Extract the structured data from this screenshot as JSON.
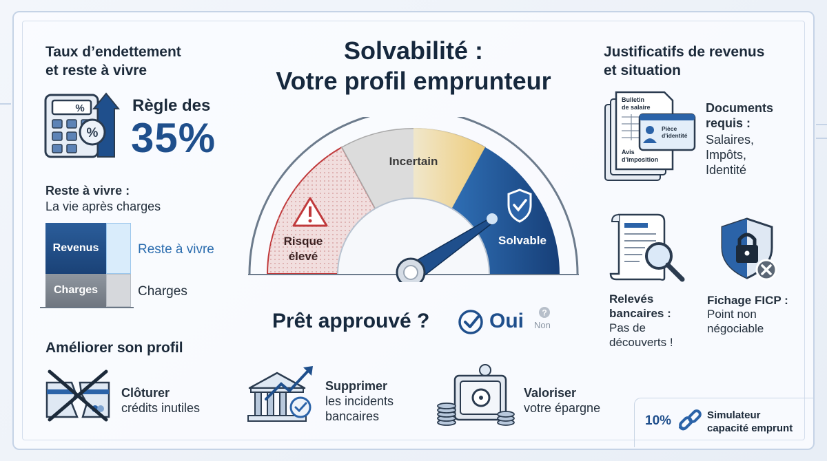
{
  "main": {
    "title_line1": "Solvabilité :",
    "title_line2": "Votre profil emprunteur",
    "gauge": {
      "segment_high_risk_line1": "Risque",
      "segment_high_risk_line2": "élevé",
      "segment_uncertain": "Incertain",
      "segment_solvent": "Solvable"
    },
    "approval_question": "Prêt approuvé ?",
    "approval_yes": "Oui",
    "approval_no": "Non"
  },
  "left": {
    "section_title_line1": "Taux d’endettement",
    "section_title_line2": "et reste à vivre",
    "rule_label": "Règle des",
    "rule_value": "35%",
    "calculator_badge": "%",
    "reste_title": "Reste à vivre :",
    "reste_subtitle": "La vie après charges",
    "bar_revenus": "Revenus",
    "bar_charges": "Charges",
    "legend_reste": "Reste à vivre",
    "legend_charges": "Charges"
  },
  "right": {
    "section_title_line1": "Justificatifs de revenus",
    "section_title_line2": "et situation",
    "doc_bulletin_line1": "Bulletin",
    "doc_bulletin_line2": "de salaire",
    "doc_piece_line1": "Pièce",
    "doc_piece_line2": "d'identité",
    "doc_avis_line1": "Avis",
    "doc_avis_line2": "d'imposition",
    "docs_title_line1": "Documents",
    "docs_title_line2": "requis :",
    "docs_list_line1": "Salaires,",
    "docs_list_line2": "Impôts,",
    "docs_list_line3": "Identité",
    "releves_title_line1": "Relevés",
    "releves_title_line2": "bancaires :",
    "releves_text_line1": "Pas de",
    "releves_text_line2": "découverts !",
    "ficp_title": "Fichage FICP :",
    "ficp_text_line1": "Point non",
    "ficp_text_line2": "négociable"
  },
  "bottom": {
    "section_title": "Améliorer son profil",
    "item1_title": "Clôturer",
    "item1_text": "crédits inutiles",
    "item2_title": "Supprimer",
    "item2_text_line1": "les incidents",
    "item2_text_line2": "bancaires",
    "item3_title": "Valoriser",
    "item3_text": "votre épargne",
    "simulator_pct": "10%",
    "simulator_line1": "Simulateur",
    "simulator_line2": "capacité emprunt"
  },
  "colors": {
    "primary_blue": "#1f4f8c",
    "risk_red": "#c0393b",
    "uncertain_yellow": "#efd27a",
    "solvent_blue": "#1a4c8e"
  },
  "icons": [
    "calculator-icon",
    "arrow-up-icon",
    "warning-icon",
    "shield-check-icon",
    "check-circle-icon",
    "help-icon",
    "documents-icon",
    "id-card-icon",
    "bank-statement-icon",
    "magnifier-icon",
    "shield-lock-icon",
    "crossed-card-icon",
    "bank-arrow-icon",
    "safe-coins-icon",
    "link-icon"
  ]
}
